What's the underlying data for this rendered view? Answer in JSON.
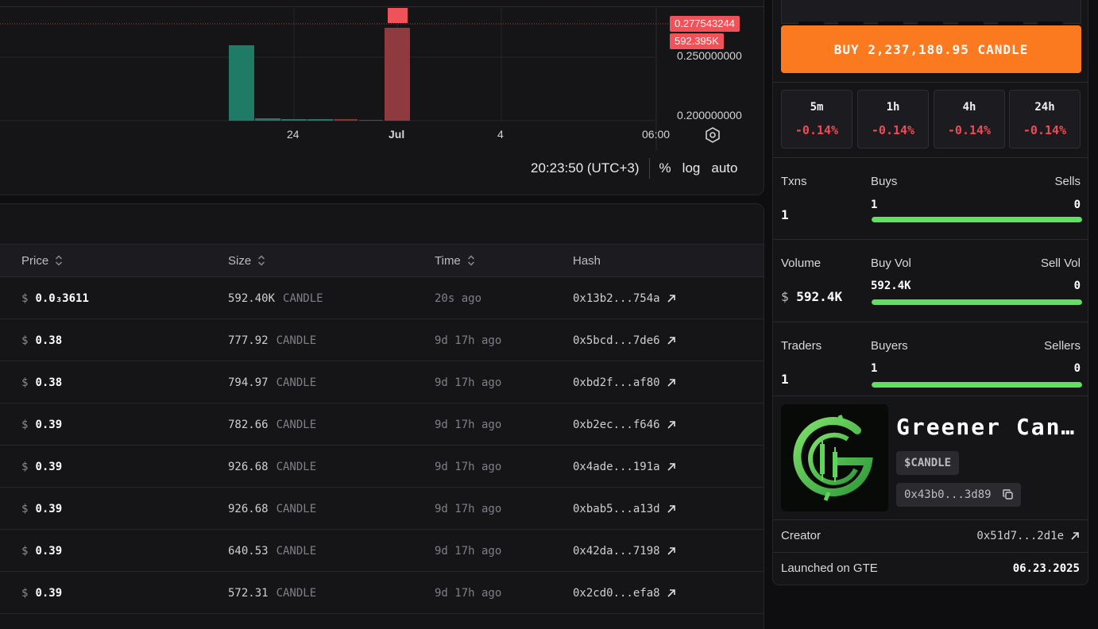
{
  "chart": {
    "price_tag": "0.277543244",
    "volume_tag": "592.395K",
    "y_ticks": [
      "0.250000000",
      "0.200000000"
    ],
    "x_ticks": [
      "24",
      "Jul",
      "4",
      "06:00"
    ],
    "clock": "20:23:50 (UTC+3)",
    "controls": [
      "%",
      "log",
      "auto"
    ],
    "colors": {
      "up": "#1f7a66",
      "down": "#b23a40",
      "tag": "#f0525a"
    }
  },
  "trades": {
    "columns": {
      "price": "Price",
      "size": "Size",
      "time": "Time",
      "hash": "Hash"
    },
    "rows": [
      {
        "currency": "$",
        "price": "0.0₃3611",
        "size": "592.40K",
        "unit": "CANDLE",
        "time": "20s ago",
        "hash": "0x13b2...754a"
      },
      {
        "currency": "$",
        "price": "0.38",
        "size": "777.92",
        "unit": "CANDLE",
        "time": "9d 17h ago",
        "hash": "0x5bcd...7de6"
      },
      {
        "currency": "$",
        "price": "0.38",
        "size": "794.97",
        "unit": "CANDLE",
        "time": "9d 17h ago",
        "hash": "0xbd2f...af80"
      },
      {
        "currency": "$",
        "price": "0.39",
        "size": "782.66",
        "unit": "CANDLE",
        "time": "9d 17h ago",
        "hash": "0xb2ec...f646"
      },
      {
        "currency": "$",
        "price": "0.39",
        "size": "926.68",
        "unit": "CANDLE",
        "time": "9d 17h ago",
        "hash": "0x4ade...191a"
      },
      {
        "currency": "$",
        "price": "0.39",
        "size": "926.68",
        "unit": "CANDLE",
        "time": "9d 17h ago",
        "hash": "0xbab5...a13d"
      },
      {
        "currency": "$",
        "price": "0.39",
        "size": "640.53",
        "unit": "CANDLE",
        "time": "9d 17h ago",
        "hash": "0x42da...7198"
      },
      {
        "currency": "$",
        "price": "0.39",
        "size": "572.31",
        "unit": "CANDLE",
        "time": "9d 17h ago",
        "hash": "0x2cd0...efa8"
      }
    ]
  },
  "sidebar": {
    "buy_button": "BUY 2,237,180.95 CANDLE",
    "timeframes": [
      {
        "label": "5m",
        "change": "-0.14%"
      },
      {
        "label": "1h",
        "change": "-0.14%"
      },
      {
        "label": "4h",
        "change": "-0.14%"
      },
      {
        "label": "24h",
        "change": "-0.14%"
      }
    ],
    "txns": {
      "label": "Txns",
      "total": "1",
      "left_label": "Buys",
      "right_label": "Sells",
      "left_value": "1",
      "right_value": "0",
      "buy_fraction": 1.0
    },
    "volume": {
      "label": "Volume",
      "currency": "$",
      "total": "592.4K",
      "left_label": "Buy Vol",
      "right_label": "Sell Vol",
      "left_value": "592.4K",
      "right_value": "0",
      "buy_fraction": 1.0
    },
    "traders": {
      "label": "Traders",
      "total": "1",
      "left_label": "Buyers",
      "right_label": "Sellers",
      "left_value": "1",
      "right_value": "0",
      "buy_fraction": 1.0
    },
    "token": {
      "name": "Greener Can…",
      "ticker": "$CANDLE",
      "address": "0x43b0...3d89"
    },
    "creator": {
      "label": "Creator",
      "value": "0x51d7...2d1e"
    },
    "launched": {
      "label": "Launched on GTE",
      "value": "06.23.2025"
    },
    "accent": "#fb7a20",
    "positive": "#5fe05f",
    "negative": "#ef4b55"
  }
}
